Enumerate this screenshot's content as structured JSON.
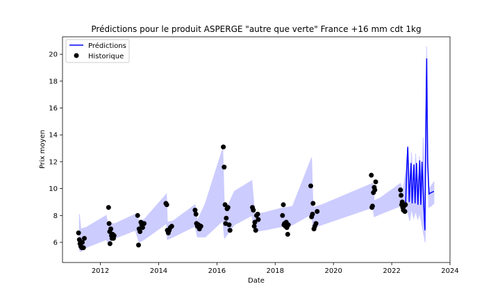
{
  "chart_data": {
    "type": "line",
    "title": "Prédictions pour le produit ASPERGE \"autre que verte\" France +16 mm cdt 1kg",
    "xlabel": "Date",
    "ylabel": "Prix moyen",
    "xlim": [
      2010.7,
      2024.0
    ],
    "ylim": [
      4.5,
      21.3
    ],
    "x_ticks": [
      2012,
      2014,
      2016,
      2018,
      2020,
      2022,
      2024
    ],
    "y_ticks": [
      6,
      8,
      10,
      12,
      14,
      16,
      18,
      20
    ],
    "grid": false,
    "legend_position": "top-left",
    "legend": [
      {
        "label": "Prédictions",
        "kind": "line",
        "color": "#0000ff"
      },
      {
        "label": "Historique",
        "kind": "marker",
        "color": "#000000"
      }
    ],
    "colors": {
      "prediction_line": "#0000ff",
      "prediction_band": "#ccccff",
      "history_points": "#000000"
    },
    "band": {
      "name": "Prédictions",
      "upper": [
        [
          2011.28,
          8.1
        ],
        [
          2011.33,
          7.0
        ],
        [
          2011.5,
          7.1
        ],
        [
          2012.2,
          8.0
        ],
        [
          2012.26,
          7.4
        ],
        [
          2012.5,
          7.4
        ],
        [
          2013.2,
          8.1
        ],
        [
          2013.33,
          7.6
        ],
        [
          2013.5,
          7.7
        ],
        [
          2014.27,
          9.6
        ],
        [
          2014.3,
          7.5
        ],
        [
          2014.5,
          7.6
        ],
        [
          2015.25,
          8.8
        ],
        [
          2015.33,
          7.6
        ],
        [
          2015.6,
          8.9
        ],
        [
          2016.2,
          13.0
        ],
        [
          2016.26,
          8.2
        ],
        [
          2016.6,
          9.8
        ],
        [
          2017.2,
          10.6
        ],
        [
          2017.3,
          8.1
        ],
        [
          2017.6,
          8.2
        ],
        [
          2018.3,
          8.6
        ],
        [
          2018.4,
          8.6
        ],
        [
          2018.6,
          8.7
        ],
        [
          2019.25,
          12.3
        ],
        [
          2019.3,
          8.6
        ],
        [
          2019.6,
          8.8
        ],
        [
          2021.35,
          10.4
        ],
        [
          2021.4,
          9.1
        ],
        [
          2021.6,
          9.3
        ],
        [
          2022.3,
          10.4
        ],
        [
          2022.38,
          9.8
        ],
        [
          2022.5,
          11.5
        ],
        [
          2022.55,
          13.2
        ],
        [
          2022.62,
          10.0
        ],
        [
          2022.68,
          12.7
        ],
        [
          2022.75,
          9.6
        ],
        [
          2022.82,
          12.6
        ],
        [
          2022.9,
          9.7
        ],
        [
          2022.95,
          12.4
        ],
        [
          2023.02,
          10.0
        ],
        [
          2023.08,
          13.8
        ],
        [
          2023.15,
          10.1
        ],
        [
          2023.2,
          20.6
        ],
        [
          2023.27,
          10.0
        ],
        [
          2023.35,
          10.2
        ],
        [
          2023.45,
          10.5
        ]
      ],
      "lower": [
        [
          2011.28,
          5.4
        ],
        [
          2011.33,
          5.3
        ],
        [
          2011.5,
          5.6
        ],
        [
          2012.2,
          6.2
        ],
        [
          2012.26,
          6.0
        ],
        [
          2012.5,
          6.3
        ],
        [
          2013.2,
          6.9
        ],
        [
          2013.33,
          6.0
        ],
        [
          2013.5,
          6.2
        ],
        [
          2014.27,
          7.4
        ],
        [
          2014.3,
          6.2
        ],
        [
          2014.5,
          6.4
        ],
        [
          2015.25,
          7.2
        ],
        [
          2015.33,
          6.4
        ],
        [
          2015.6,
          6.4
        ],
        [
          2016.2,
          7.6
        ],
        [
          2016.26,
          6.3
        ],
        [
          2016.6,
          7.3
        ],
        [
          2017.2,
          8.0
        ],
        [
          2017.3,
          6.8
        ],
        [
          2017.6,
          6.9
        ],
        [
          2018.3,
          7.2
        ],
        [
          2018.4,
          7.2
        ],
        [
          2018.6,
          7.3
        ],
        [
          2019.25,
          8.1
        ],
        [
          2019.3,
          7.1
        ],
        [
          2019.6,
          7.3
        ],
        [
          2021.35,
          8.6
        ],
        [
          2021.4,
          7.9
        ],
        [
          2021.6,
          8.1
        ],
        [
          2022.3,
          8.7
        ],
        [
          2022.38,
          8.4
        ],
        [
          2022.5,
          8.4
        ],
        [
          2022.55,
          8.2
        ],
        [
          2022.62,
          7.6
        ],
        [
          2022.68,
          8.5
        ],
        [
          2022.75,
          7.8
        ],
        [
          2022.82,
          8.3
        ],
        [
          2022.9,
          7.7
        ],
        [
          2022.95,
          8.2
        ],
        [
          2023.02,
          7.5
        ],
        [
          2023.08,
          6.8
        ],
        [
          2023.15,
          6.0
        ],
        [
          2023.2,
          16.5
        ],
        [
          2023.27,
          8.6
        ],
        [
          2023.35,
          8.7
        ],
        [
          2023.45,
          8.9
        ]
      ]
    },
    "series": [
      {
        "name": "Prédictions",
        "kind": "line",
        "x": [
          2022.35,
          2022.42,
          2022.48,
          2022.52,
          2022.55,
          2022.6,
          2022.66,
          2022.7,
          2022.76,
          2022.8,
          2022.85,
          2022.9,
          2022.96,
          2023.0,
          2023.04,
          2023.1,
          2023.14,
          2023.17,
          2023.2,
          2023.23,
          2023.28,
          2023.35,
          2023.45
        ],
        "y": [
          8.7,
          8.8,
          9.0,
          11.8,
          13.1,
          9.0,
          11.9,
          8.9,
          11.8,
          8.9,
          11.9,
          8.8,
          12.1,
          8.8,
          12.0,
          8.7,
          6.9,
          14.5,
          19.7,
          12.0,
          9.6,
          9.7,
          9.8
        ]
      },
      {
        "name": "Historique",
        "kind": "scatter",
        "x": [
          2011.25,
          2011.28,
          2011.3,
          2011.33,
          2011.36,
          2011.38,
          2011.42,
          2011.45,
          2012.28,
          2012.3,
          2012.32,
          2012.33,
          2012.36,
          2012.38,
          2012.4,
          2012.42,
          2012.45,
          2012.47,
          2013.28,
          2013.31,
          2013.33,
          2013.36,
          2013.39,
          2013.42,
          2013.45,
          2013.48,
          2013.5,
          2014.25,
          2014.28,
          2014.3,
          2014.33,
          2014.36,
          2014.4,
          2014.45,
          2015.25,
          2015.28,
          2015.3,
          2015.33,
          2015.37,
          2015.4,
          2015.45,
          2016.22,
          2016.25,
          2016.28,
          2016.3,
          2016.32,
          2016.35,
          2016.38,
          2016.42,
          2016.45,
          2017.22,
          2017.25,
          2017.28,
          2017.3,
          2017.33,
          2017.36,
          2017.4,
          2017.42,
          2018.25,
          2018.28,
          2018.3,
          2018.32,
          2018.35,
          2018.38,
          2018.4,
          2018.43,
          2018.45,
          2019.22,
          2019.25,
          2019.28,
          2019.3,
          2019.33,
          2019.36,
          2019.4,
          2019.44,
          2021.3,
          2021.32,
          2021.34,
          2021.37,
          2021.4,
          2021.42,
          2021.45,
          2022.3,
          2022.32,
          2022.34,
          2022.36,
          2022.38,
          2022.4,
          2022.42,
          2022.45,
          2022.47
        ],
        "y": [
          6.7,
          6.2,
          5.9,
          5.7,
          5.6,
          6.0,
          5.6,
          6.3,
          8.6,
          7.4,
          6.8,
          5.9,
          7.0,
          6.5,
          6.3,
          6.6,
          6.3,
          6.5,
          8.0,
          5.8,
          7.0,
          6.8,
          7.5,
          7.3,
          7.1,
          7.4,
          7.4,
          8.9,
          8.8,
          6.9,
          6.7,
          6.9,
          7.1,
          7.2,
          8.4,
          8.1,
          7.4,
          7.2,
          7.3,
          7.0,
          7.2,
          13.1,
          11.6,
          8.8,
          7.4,
          7.8,
          8.5,
          8.6,
          7.3,
          6.9,
          8.6,
          8.4,
          7.2,
          7.5,
          6.9,
          8.0,
          8.1,
          7.7,
          8.0,
          8.8,
          7.3,
          7.4,
          7.2,
          7.5,
          7.1,
          6.6,
          7.3,
          10.2,
          7.9,
          8.1,
          8.9,
          7.0,
          7.2,
          7.4,
          8.3,
          11.0,
          8.6,
          8.7,
          9.7,
          10.1,
          9.9,
          10.5,
          9.9,
          9.5,
          8.8,
          9.0,
          8.6,
          8.4,
          8.7,
          8.3,
          8.8
        ]
      }
    ]
  }
}
